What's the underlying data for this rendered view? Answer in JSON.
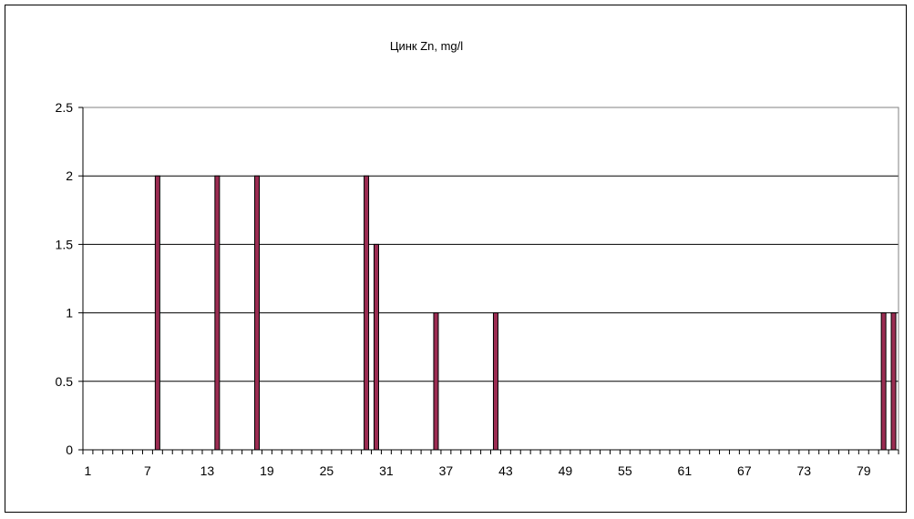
{
  "chart_data": {
    "type": "bar",
    "title": "Цинк Zn, mg/l",
    "xlabel": "",
    "ylabel": "",
    "x_min": 1,
    "x_max": 82,
    "x_tick_labels": [
      "1",
      "7",
      "13",
      "19",
      "25",
      "31",
      "37",
      "43",
      "49",
      "55",
      "61",
      "67",
      "73",
      "79"
    ],
    "y_tick_labels": [
      "0",
      "0.5",
      "1",
      "1.5",
      "2",
      "2.5"
    ],
    "ylim": [
      0,
      2.5
    ],
    "grid": true,
    "legend": "none",
    "colors": {
      "bar_fill": "#9b2c52",
      "bar_edge": "#000000",
      "grid": "#000000",
      "plot_border": "#808080"
    },
    "points": [
      {
        "x": 8,
        "value": 2
      },
      {
        "x": 14,
        "value": 2
      },
      {
        "x": 18,
        "value": 2
      },
      {
        "x": 29,
        "value": 2
      },
      {
        "x": 30,
        "value": 1.5
      },
      {
        "x": 36,
        "value": 1
      },
      {
        "x": 42,
        "value": 1
      },
      {
        "x": 81,
        "value": 1
      },
      {
        "x": 82,
        "value": 1
      }
    ]
  }
}
